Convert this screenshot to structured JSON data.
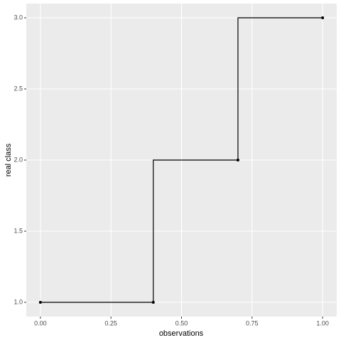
{
  "chart_data": {
    "type": "step",
    "step_direction": "vh",
    "x_label": "observations",
    "y_label": "real class",
    "series": [
      {
        "x": [
          0,
          0.4,
          0.7,
          1
        ],
        "values": [
          1,
          1,
          2,
          3
        ],
        "color": "#000000"
      }
    ],
    "xlim": [
      -0.05,
      1.05
    ],
    "xticks": [
      {
        "value": 0,
        "label": "0.00"
      },
      {
        "value": 0.25,
        "label": "0.25"
      },
      {
        "value": 0.5,
        "label": "0.50"
      },
      {
        "value": 0.75,
        "label": "0.75"
      },
      {
        "value": 1,
        "label": "1.00"
      }
    ],
    "ylim": [
      0.9,
      3.1
    ],
    "yticks": [
      {
        "value": 1,
        "label": "1.0"
      },
      {
        "value": 1.5,
        "label": "1.5"
      },
      {
        "value": 2,
        "label": "2.0"
      },
      {
        "value": 2.5,
        "label": "2.5"
      },
      {
        "value": 3,
        "label": "3.0"
      }
    ],
    "grid": true,
    "panel_color": "#ebebeb"
  }
}
